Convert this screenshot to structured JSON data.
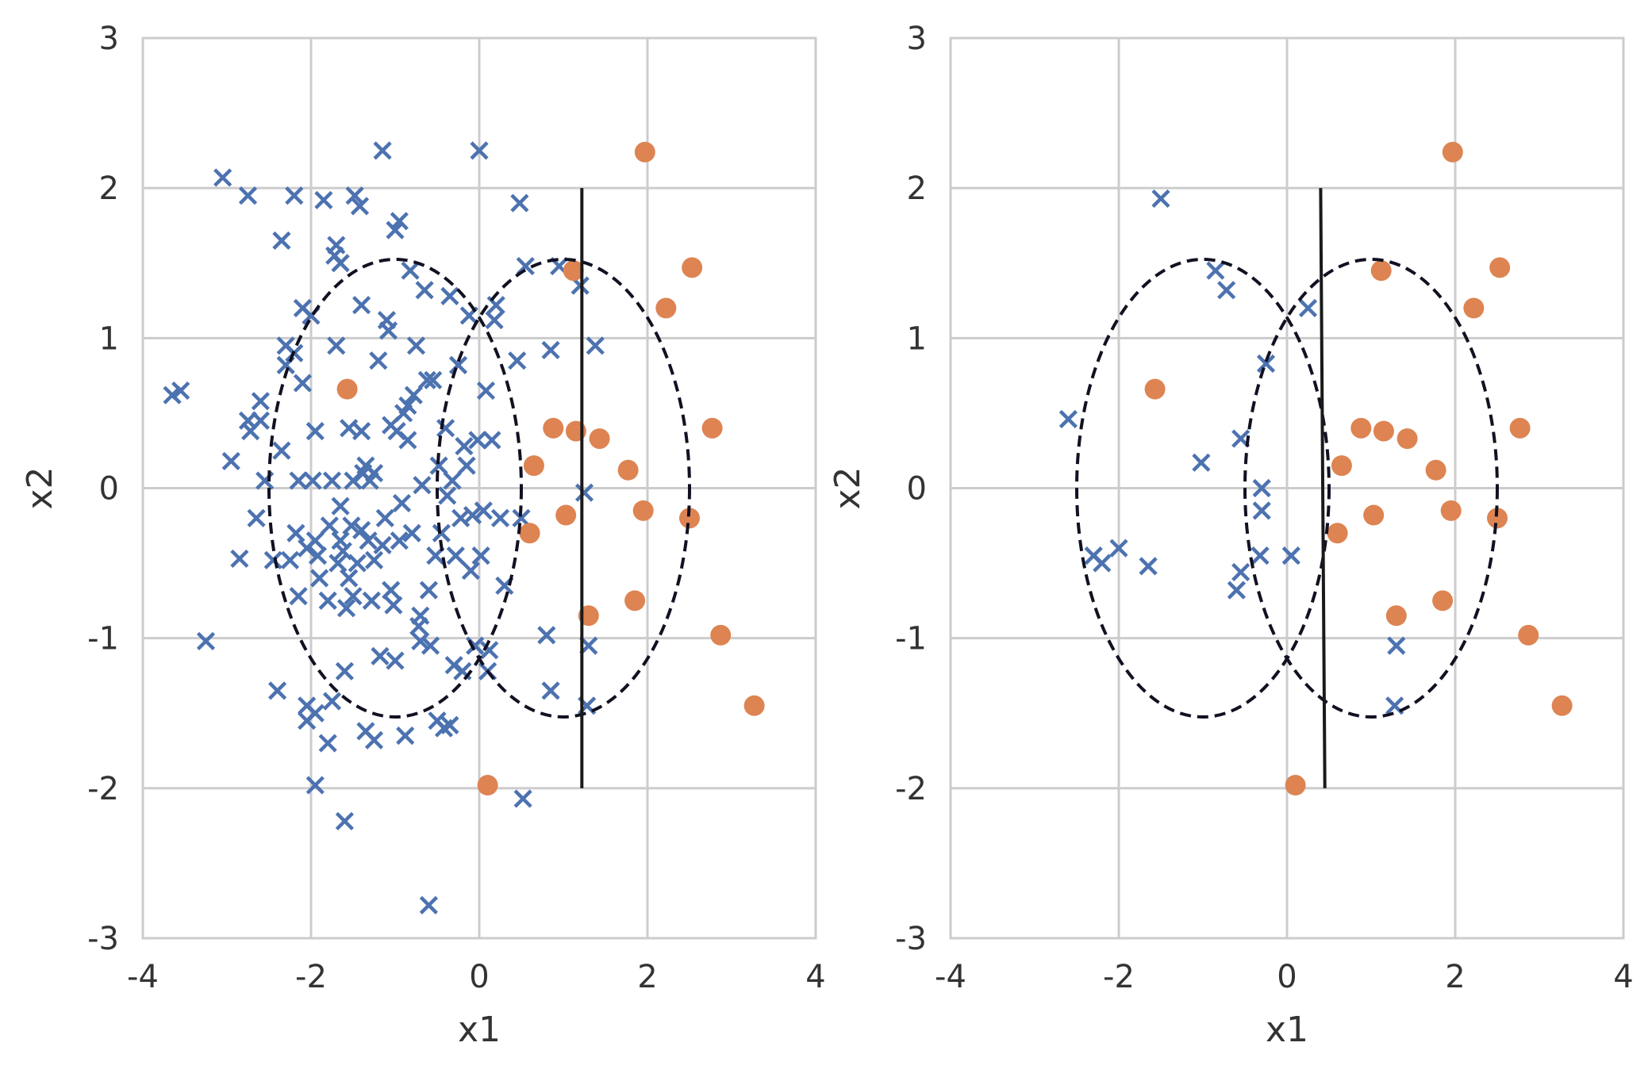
{
  "figure": {
    "colors": {
      "class0": "#4c72b0",
      "class1": "#dd8452",
      "grid": "#cccccc",
      "line": "#1a1a1a"
    }
  },
  "chart_data": [
    {
      "type": "scatter",
      "title": "",
      "xlabel": "x1",
      "ylabel": "x2",
      "xlim": [
        -4,
        4
      ],
      "ylim": [
        -3,
        3
      ],
      "xticks": [
        "-4",
        "-2",
        "0",
        "2",
        "4"
      ],
      "yticks": [
        "-3",
        "-2",
        "-1",
        "0",
        "1",
        "2",
        "3"
      ],
      "grid": true,
      "legend": "none",
      "ellipses": [
        {
          "center": [
            -1,
            0
          ],
          "width": 3.0,
          "height": 3.05,
          "style": "dashed"
        },
        {
          "center": [
            1,
            0
          ],
          "width": 3.0,
          "height": 3.05,
          "style": "dashed"
        }
      ],
      "boundary": {
        "x": [
          1.22,
          1.22
        ],
        "y": [
          -2,
          2
        ]
      },
      "series": [
        {
          "marker": "x",
          "color": "#4c72b0",
          "points": [
            [
              -3.65,
              0.62
            ],
            [
              -3.55,
              0.65
            ],
            [
              -3.25,
              -1.02
            ],
            [
              -3.05,
              2.07
            ],
            [
              -2.95,
              0.18
            ],
            [
              -2.85,
              -0.47
            ],
            [
              -2.75,
              1.95
            ],
            [
              -2.75,
              0.45
            ],
            [
              -2.72,
              0.38
            ],
            [
              -2.65,
              -0.2
            ],
            [
              -2.6,
              0.58
            ],
            [
              -2.6,
              0.45
            ],
            [
              -2.55,
              0.05
            ],
            [
              -2.45,
              -0.48
            ],
            [
              -2.4,
              -1.35
            ],
            [
              -2.35,
              1.65
            ],
            [
              -2.35,
              0.25
            ],
            [
              -2.3,
              0.95
            ],
            [
              -2.3,
              0.82
            ],
            [
              -2.25,
              -0.48
            ],
            [
              -2.2,
              1.95
            ],
            [
              -2.2,
              0.9
            ],
            [
              -2.18,
              -0.3
            ],
            [
              -2.15,
              0.05
            ],
            [
              -2.15,
              -0.72
            ],
            [
              -2.1,
              1.2
            ],
            [
              -2.1,
              0.7
            ],
            [
              -2.05,
              -0.4
            ],
            [
              -2.05,
              -1.45
            ],
            [
              -2.05,
              -1.55
            ],
            [
              -2.0,
              1.15
            ],
            [
              -1.98,
              0.05
            ],
            [
              -1.95,
              -1.98
            ],
            [
              -1.95,
              -1.5
            ],
            [
              -1.95,
              0.38
            ],
            [
              -1.95,
              -0.35
            ],
            [
              -1.92,
              -0.45
            ],
            [
              -1.9,
              -0.6
            ],
            [
              -1.85,
              1.92
            ],
            [
              -1.8,
              -1.7
            ],
            [
              -1.8,
              -0.75
            ],
            [
              -1.78,
              -0.25
            ],
            [
              -1.75,
              -1.42
            ],
            [
              -1.75,
              0.05
            ],
            [
              -1.72,
              1.55
            ],
            [
              -1.7,
              1.62
            ],
            [
              -1.7,
              0.95
            ],
            [
              -1.68,
              -0.5
            ],
            [
              -1.65,
              1.5
            ],
            [
              -1.65,
              -0.12
            ],
            [
              -1.65,
              -0.35
            ],
            [
              -1.62,
              -0.42
            ],
            [
              -1.6,
              -1.22
            ],
            [
              -1.6,
              -2.22
            ],
            [
              -1.58,
              -0.8
            ],
            [
              -1.55,
              0.4
            ],
            [
              -1.55,
              -0.6
            ],
            [
              -1.52,
              -0.25
            ],
            [
              -1.5,
              0.05
            ],
            [
              -1.5,
              -0.72
            ],
            [
              -1.48,
              1.95
            ],
            [
              -1.45,
              -0.5
            ],
            [
              -1.42,
              1.88
            ],
            [
              -1.4,
              1.22
            ],
            [
              -1.4,
              -0.28
            ],
            [
              -1.4,
              0.38
            ],
            [
              -1.38,
              0.1
            ],
            [
              -1.35,
              -1.62
            ],
            [
              -1.35,
              0.15
            ],
            [
              -1.32,
              -0.35
            ],
            [
              -1.3,
              0.05
            ],
            [
              -1.28,
              -0.75
            ],
            [
              -1.25,
              -1.68
            ],
            [
              -1.25,
              -0.48
            ],
            [
              -1.25,
              0.1
            ],
            [
              -1.2,
              0.85
            ],
            [
              -1.18,
              -1.12
            ],
            [
              -1.15,
              -0.38
            ],
            [
              -1.15,
              2.25
            ],
            [
              -1.12,
              -0.2
            ],
            [
              -1.1,
              1.12
            ],
            [
              -1.08,
              1.05
            ],
            [
              -1.05,
              -0.68
            ],
            [
              -1.05,
              0.42
            ],
            [
              -1.02,
              -0.78
            ],
            [
              -1.0,
              1.72
            ],
            [
              -1.0,
              -1.15
            ],
            [
              -0.98,
              0.38
            ],
            [
              -0.95,
              1.78
            ],
            [
              -0.95,
              -0.35
            ],
            [
              -0.92,
              -0.1
            ],
            [
              -0.9,
              0.5
            ],
            [
              -0.88,
              -1.65
            ],
            [
              -0.85,
              0.32
            ],
            [
              -0.85,
              0.55
            ],
            [
              -0.82,
              1.45
            ],
            [
              -0.8,
              -0.3
            ],
            [
              -0.78,
              0.62
            ],
            [
              -0.75,
              0.95
            ],
            [
              -0.72,
              -0.92
            ],
            [
              -0.7,
              -0.85
            ],
            [
              -0.7,
              -1.02
            ],
            [
              -0.68,
              0.02
            ],
            [
              -0.65,
              1.32
            ],
            [
              -0.62,
              0.72
            ],
            [
              -0.6,
              -0.68
            ],
            [
              -0.6,
              -2.78
            ],
            [
              -0.58,
              -1.05
            ],
            [
              -0.55,
              0.72
            ],
            [
              -0.52,
              -0.45
            ],
            [
              -0.5,
              -1.55
            ],
            [
              -0.48,
              0.15
            ],
            [
              -0.45,
              -0.3
            ],
            [
              -0.42,
              -1.6
            ],
            [
              -0.4,
              0.4
            ],
            [
              -0.38,
              -0.05
            ],
            [
              -0.35,
              1.28
            ],
            [
              -0.35,
              -1.58
            ],
            [
              -0.32,
              0.05
            ],
            [
              -0.3,
              -1.18
            ],
            [
              -0.28,
              -0.45
            ],
            [
              -0.25,
              0.82
            ],
            [
              -0.22,
              -0.2
            ],
            [
              -0.2,
              -1.22
            ],
            [
              -0.18,
              0.28
            ],
            [
              -0.15,
              0.15
            ],
            [
              -0.12,
              1.15
            ],
            [
              -0.1,
              -0.55
            ],
            [
              -0.08,
              -0.18
            ],
            [
              -0.05,
              -1.05
            ],
            [
              -0.02,
              0.32
            ],
            [
              0.0,
              2.25
            ],
            [
              0.02,
              -0.45
            ],
            [
              0.05,
              -0.15
            ],
            [
              0.08,
              0.65
            ],
            [
              0.1,
              -1.22
            ],
            [
              0.12,
              -1.08
            ],
            [
              0.15,
              0.32
            ],
            [
              0.18,
              1.12
            ],
            [
              0.2,
              1.22
            ],
            [
              0.25,
              -0.2
            ],
            [
              0.3,
              -0.65
            ],
            [
              0.45,
              0.85
            ],
            [
              0.48,
              1.9
            ],
            [
              0.5,
              -0.2
            ],
            [
              0.52,
              -2.07
            ],
            [
              0.55,
              1.48
            ],
            [
              0.8,
              -0.98
            ],
            [
              0.85,
              0.92
            ],
            [
              0.85,
              -1.35
            ],
            [
              0.95,
              1.48
            ],
            [
              1.2,
              1.35
            ],
            [
              1.25,
              -0.03
            ],
            [
              1.28,
              -1.45
            ],
            [
              1.3,
              -1.05
            ],
            [
              1.38,
              0.95
            ]
          ]
        },
        {
          "marker": "o",
          "color": "#dd8452",
          "points": [
            [
              -1.57,
              0.66
            ],
            [
              0.1,
              -1.98
            ],
            [
              0.6,
              -0.3
            ],
            [
              0.65,
              0.15
            ],
            [
              0.88,
              0.4
            ],
            [
              1.03,
              -0.18
            ],
            [
              1.12,
              1.45
            ],
            [
              1.15,
              0.38
            ],
            [
              1.3,
              -0.85
            ],
            [
              1.43,
              0.33
            ],
            [
              1.77,
              0.12
            ],
            [
              1.85,
              -0.75
            ],
            [
              1.95,
              -0.15
            ],
            [
              1.97,
              2.24
            ],
            [
              2.22,
              1.2
            ],
            [
              2.5,
              -0.2
            ],
            [
              2.53,
              1.47
            ],
            [
              2.77,
              0.4
            ],
            [
              2.87,
              -0.98
            ],
            [
              3.27,
              -1.45
            ]
          ]
        }
      ]
    },
    {
      "type": "scatter",
      "title": "",
      "xlabel": "x1",
      "ylabel": "x2",
      "xlim": [
        -4,
        4
      ],
      "ylim": [
        -3,
        3
      ],
      "xticks": [
        "-4",
        "-2",
        "0",
        "2",
        "4"
      ],
      "yticks": [
        "-3",
        "-2",
        "-1",
        "0",
        "1",
        "2",
        "3"
      ],
      "grid": true,
      "legend": "none",
      "ellipses": [
        {
          "center": [
            -1,
            0
          ],
          "width": 3.0,
          "height": 3.05,
          "style": "dashed"
        },
        {
          "center": [
            1,
            0
          ],
          "width": 3.0,
          "height": 3.05,
          "style": "dashed"
        }
      ],
      "boundary": {
        "x": [
          0.4,
          0.45
        ],
        "y": [
          2,
          -2
        ]
      },
      "series": [
        {
          "marker": "x",
          "color": "#4c72b0",
          "points": [
            [
              -2.6,
              0.46
            ],
            [
              -2.3,
              -0.45
            ],
            [
              -2.2,
              -0.5
            ],
            [
              -2.0,
              -0.4
            ],
            [
              -1.65,
              -0.52
            ],
            [
              -1.5,
              1.93
            ],
            [
              -1.02,
              0.17
            ],
            [
              -0.85,
              1.45
            ],
            [
              -0.72,
              1.32
            ],
            [
              -0.6,
              -0.68
            ],
            [
              -0.55,
              -0.56
            ],
            [
              -0.55,
              0.33
            ],
            [
              -0.32,
              -0.45
            ],
            [
              -0.3,
              0.0
            ],
            [
              -0.3,
              -0.15
            ],
            [
              -0.25,
              0.83
            ],
            [
              0.05,
              -0.45
            ],
            [
              0.25,
              1.2
            ],
            [
              1.3,
              -1.05
            ],
            [
              1.28,
              -1.45
            ]
          ]
        },
        {
          "marker": "o",
          "color": "#dd8452",
          "points": [
            [
              -1.57,
              0.66
            ],
            [
              0.1,
              -1.98
            ],
            [
              0.6,
              -0.3
            ],
            [
              0.65,
              0.15
            ],
            [
              0.88,
              0.4
            ],
            [
              1.03,
              -0.18
            ],
            [
              1.12,
              1.45
            ],
            [
              1.15,
              0.38
            ],
            [
              1.3,
              -0.85
            ],
            [
              1.43,
              0.33
            ],
            [
              1.77,
              0.12
            ],
            [
              1.85,
              -0.75
            ],
            [
              1.95,
              -0.15
            ],
            [
              1.97,
              2.24
            ],
            [
              2.22,
              1.2
            ],
            [
              2.5,
              -0.2
            ],
            [
              2.53,
              1.47
            ],
            [
              2.77,
              0.4
            ],
            [
              2.87,
              -0.98
            ],
            [
              3.27,
              -1.45
            ]
          ]
        }
      ]
    }
  ]
}
